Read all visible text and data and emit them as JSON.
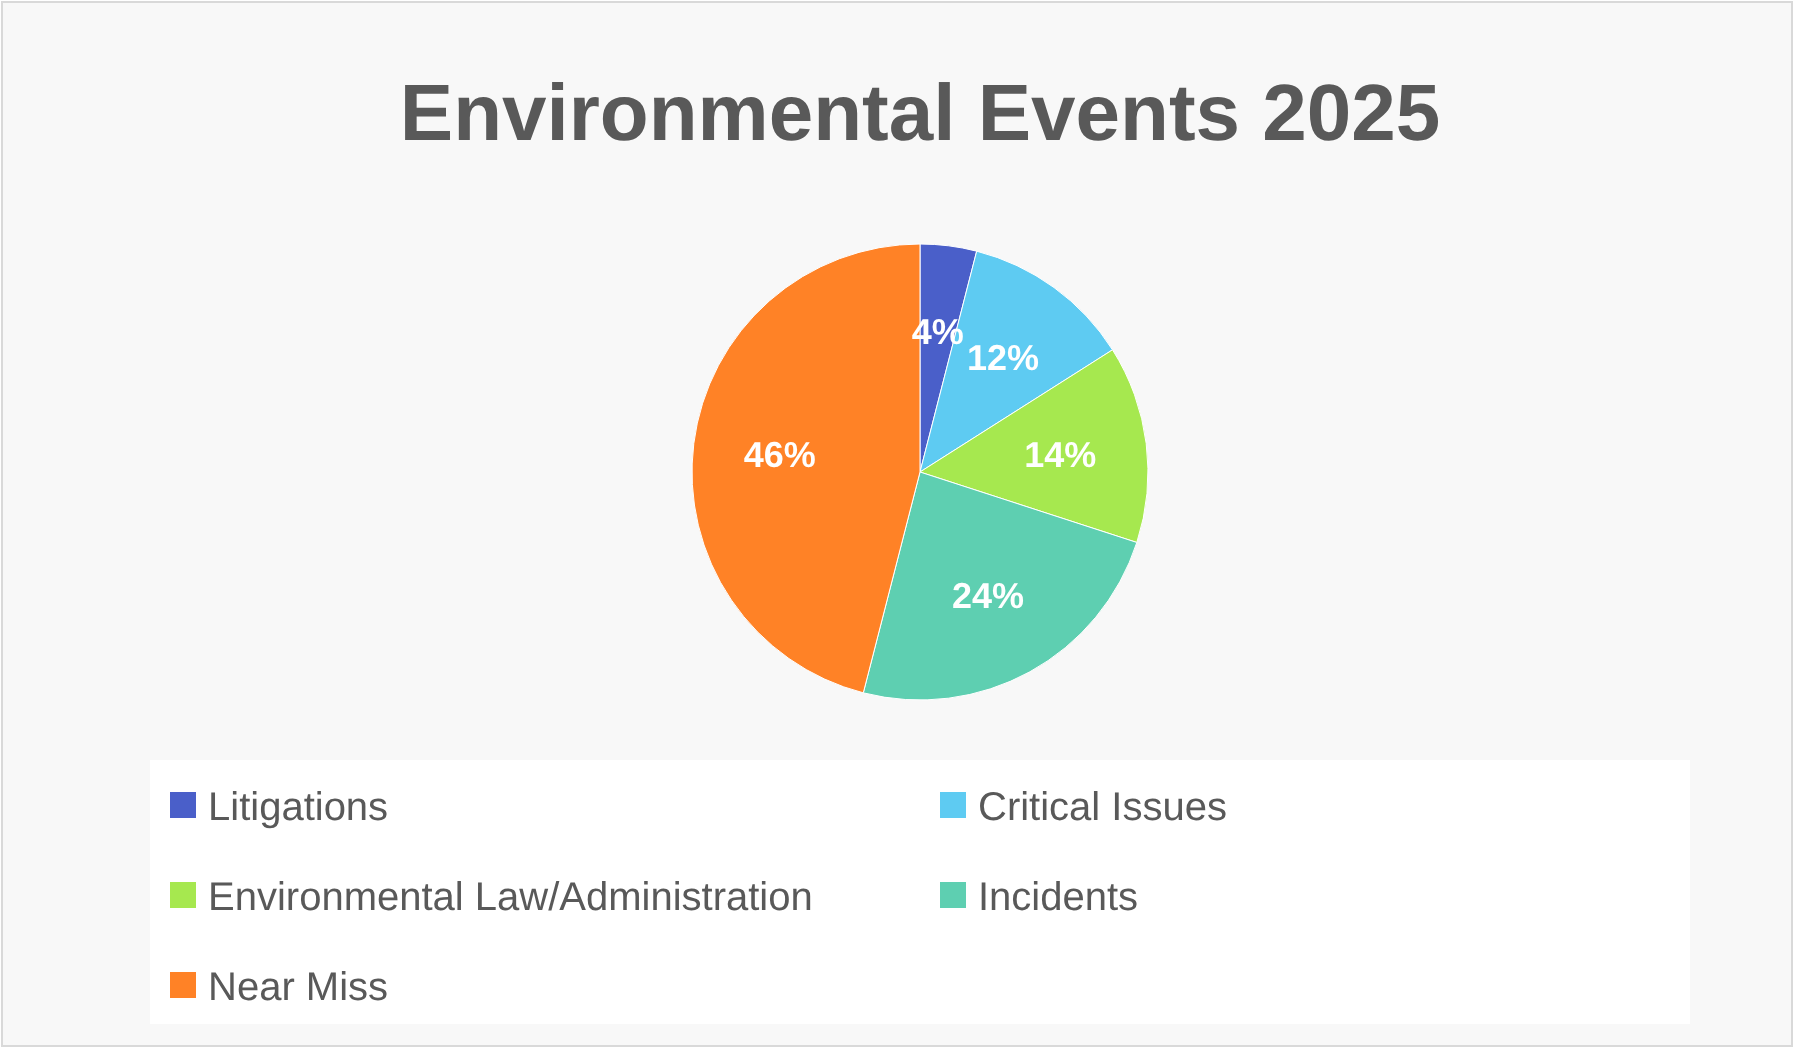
{
  "chart_data": {
    "type": "pie",
    "title": "Environmental Events 2025",
    "categories": [
      "Litigations",
      "Critical Issues",
      "Environmental Law/Administration",
      "Incidents",
      "Near Miss"
    ],
    "values": [
      4,
      12,
      14,
      24,
      46
    ],
    "colors": [
      "#4a5fc9",
      "#5ecbf2",
      "#a6e84f",
      "#5ecfb1",
      "#ff8226"
    ],
    "value_labels": [
      "4%",
      "12%",
      "14%",
      "24%",
      "46%"
    ],
    "legend": "bottom"
  }
}
